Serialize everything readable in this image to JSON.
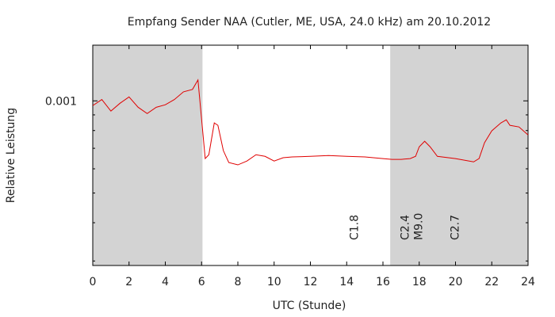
{
  "chart_data": {
    "type": "line",
    "title": "Empfang Sender  NAA (Cutler, ME, USA, 24.0 kHz) am 20.10.2012",
    "x_label": "UTC (Stunde)",
    "y_label": "Relative Leistung",
    "xlim": [
      0,
      24
    ],
    "xticks": [
      0,
      2,
      4,
      6,
      8,
      10,
      12,
      14,
      16,
      18,
      20,
      22,
      24
    ],
    "ylim": [
      0.00029,
      0.00152
    ],
    "yticks": [
      0.001
    ],
    "yminorticks": [
      0.0009,
      0.0008,
      0.0007,
      0.0006,
      0.0005,
      0.0004,
      0.0003
    ],
    "log_y": true,
    "shaded": [
      [
        0,
        6.05
      ],
      [
        16.4,
        24
      ]
    ],
    "shade_color": "#d3d3d3",
    "x": [
      0,
      0.5,
      1,
      1.5,
      2,
      2.5,
      3,
      3.5,
      4,
      4.5,
      5,
      5.5,
      5.8,
      6.0,
      6.2,
      6.4,
      6.7,
      6.9,
      7.2,
      7.5,
      8,
      8.5,
      9,
      9.5,
      10,
      10.5,
      11,
      12,
      13,
      14,
      15,
      16,
      16.5,
      17,
      17.5,
      17.8,
      18,
      18.3,
      18.6,
      19,
      20,
      21,
      21.3,
      21.6,
      22,
      22.5,
      22.8,
      23,
      23.5,
      24
    ],
    "series": [
      {
        "name": "NAA",
        "color": "#e00000",
        "values": [
          0.000965,
          0.00101,
          0.000926,
          0.000982,
          0.00103,
          0.000953,
          0.000909,
          0.000953,
          0.000971,
          0.00101,
          0.00107,
          0.00109,
          0.00117,
          0.000872,
          0.000648,
          0.000667,
          0.000847,
          0.000832,
          0.000688,
          0.000629,
          0.000618,
          0.000636,
          0.000667,
          0.000659,
          0.000636,
          0.000652,
          0.000656,
          0.000659,
          0.000663,
          0.000659,
          0.000656,
          0.000648,
          0.000644,
          0.000644,
          0.000648,
          0.000659,
          0.000708,
          0.000738,
          0.000708,
          0.000659,
          0.000648,
          0.000632,
          0.000648,
          0.00073,
          0.000798,
          0.000847,
          0.000867,
          0.000832,
          0.000822,
          0.000774
        ]
      }
    ],
    "annotations": [
      {
        "text": "C1.8",
        "x": 14.4,
        "color": "#ffff00"
      },
      {
        "text": "C2.4",
        "x": 17.2,
        "color": "#ffff00"
      },
      {
        "text": "M9.0",
        "x": 17.95,
        "color": "#ff0000"
      },
      {
        "text": "C2.7",
        "x": 19.95,
        "color": "#ffff00"
      }
    ]
  }
}
